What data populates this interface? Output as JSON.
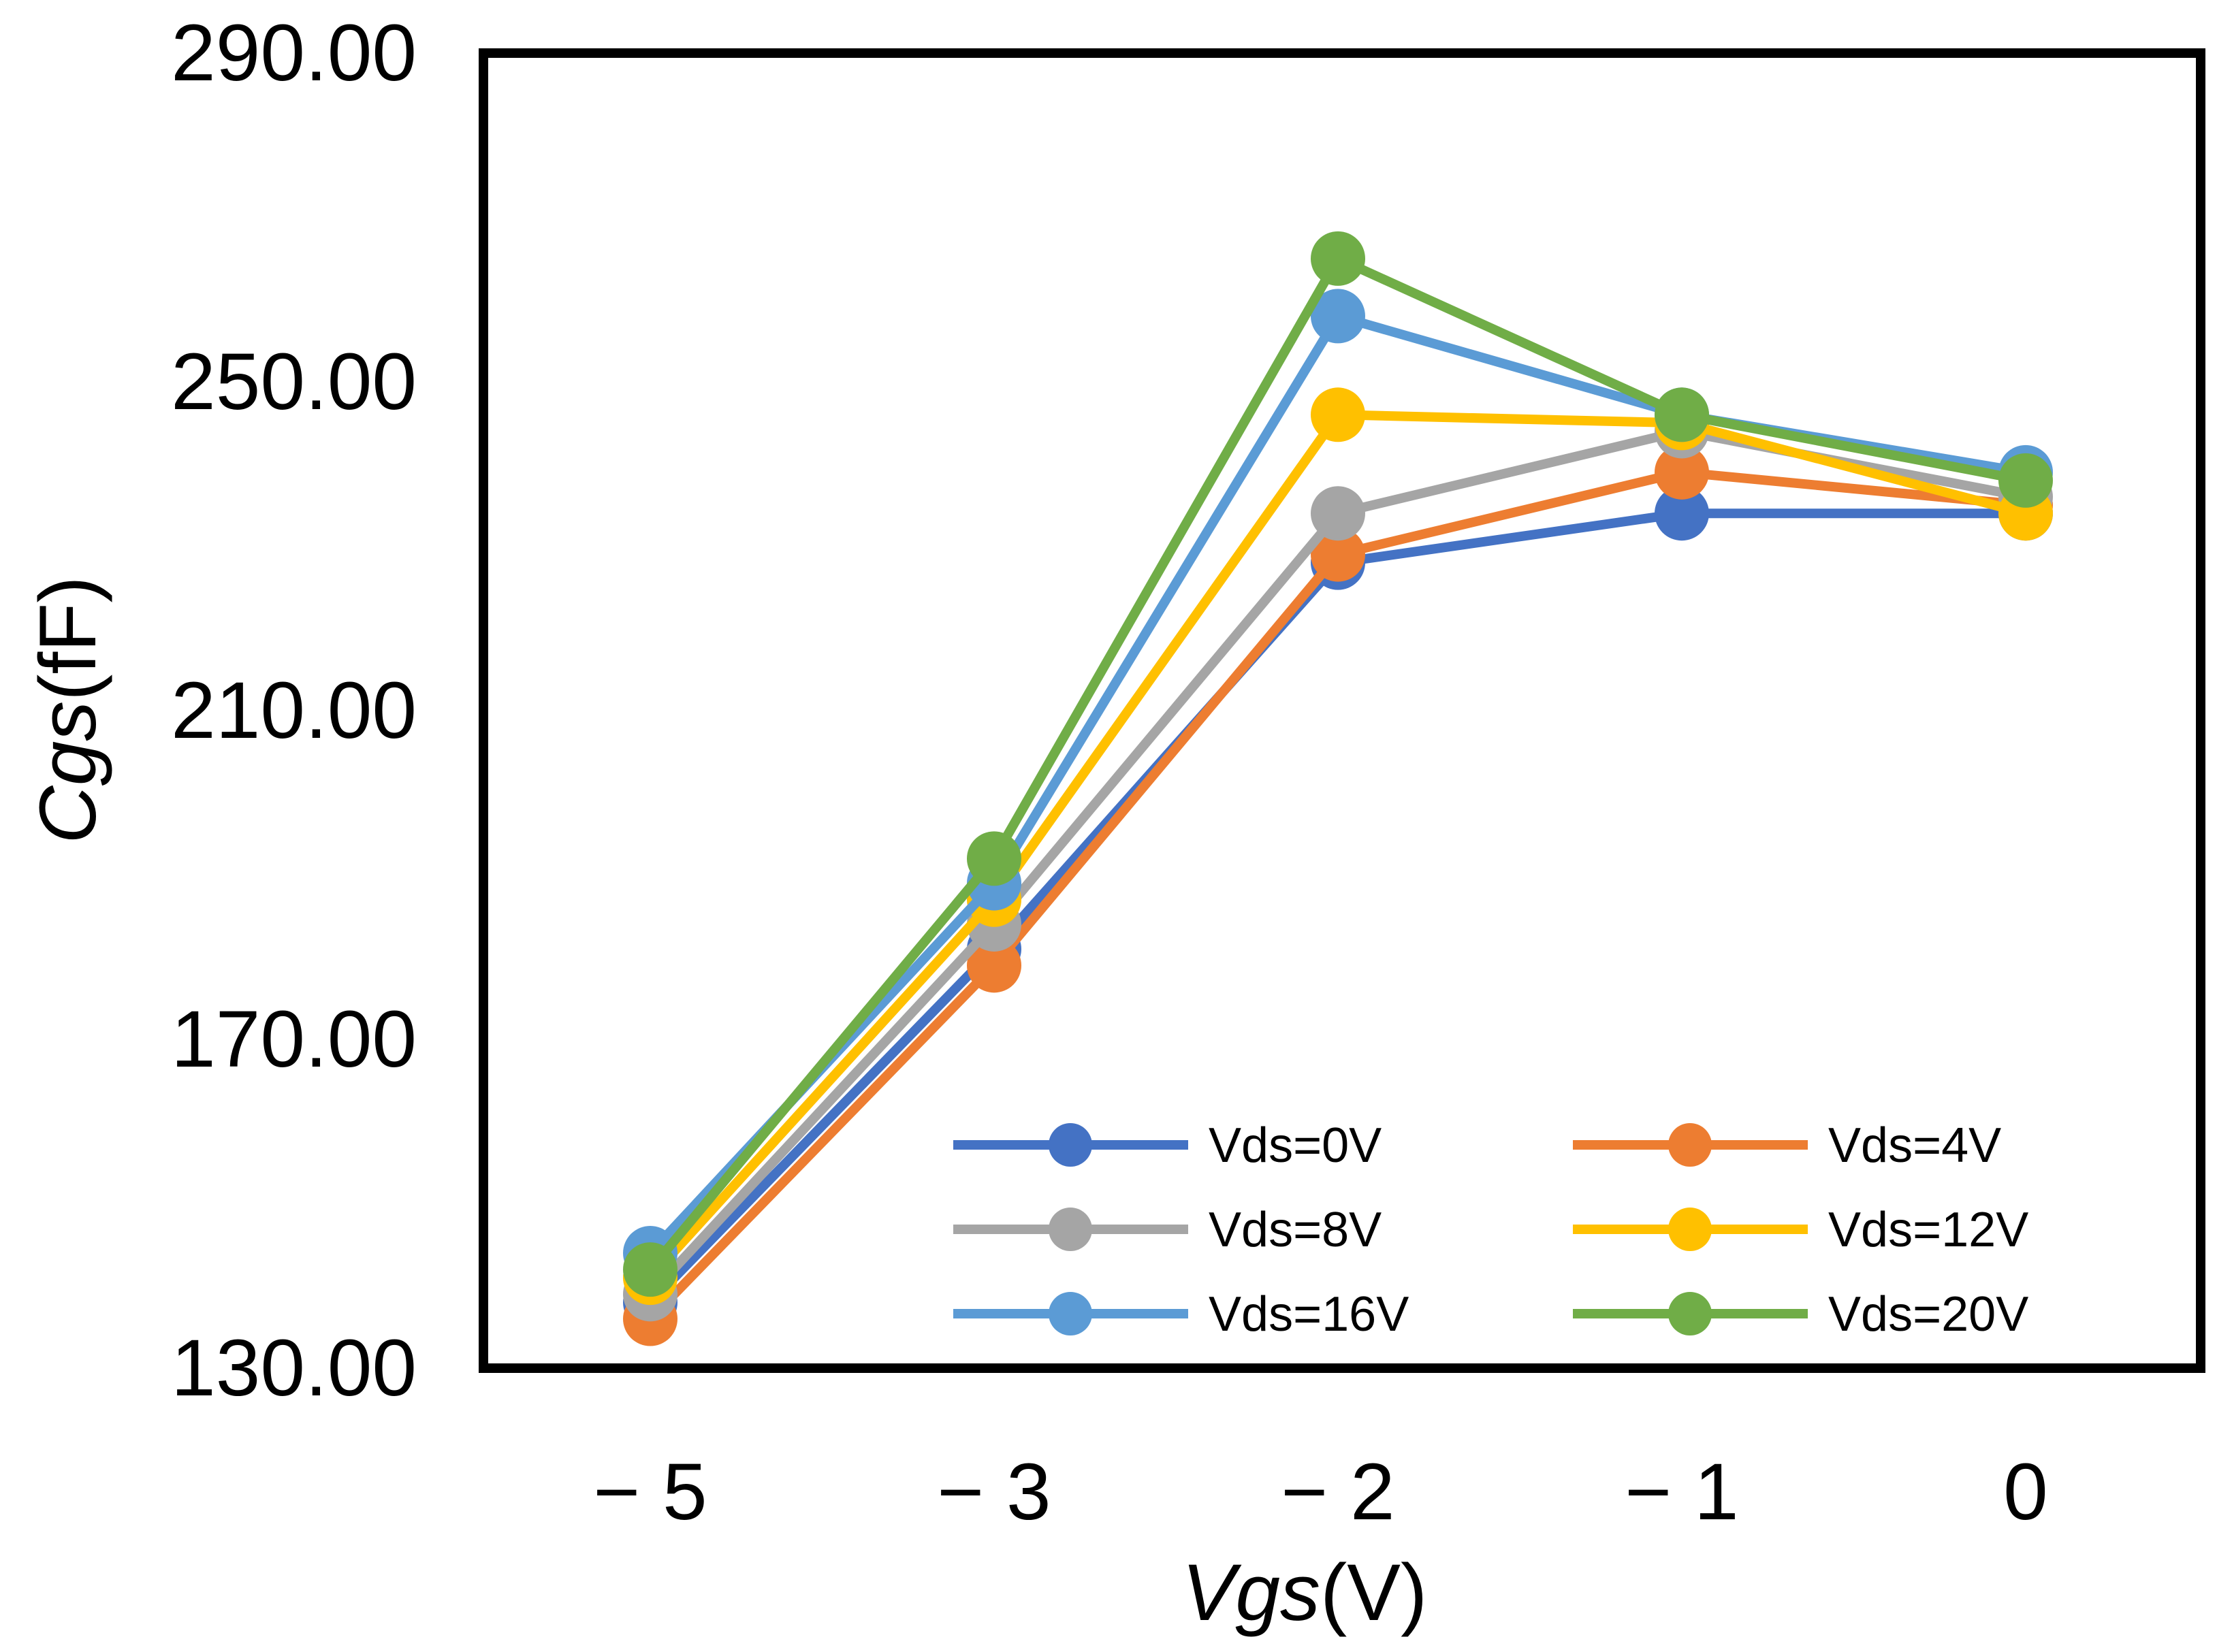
{
  "chart_data": {
    "type": "line",
    "title": "",
    "xlabel": {
      "italic": "Vgs",
      "unit": "(V)"
    },
    "ylabel": {
      "italic": "Cgs",
      "unit": "(fF)"
    },
    "categories": [
      "− 5",
      "− 3",
      "− 2",
      "− 1",
      "0"
    ],
    "x": [
      -5,
      -3,
      -2,
      -1,
      0
    ],
    "ylim": [
      130,
      290
    ],
    "yticks": [
      130,
      170,
      210,
      250,
      290
    ],
    "ytick_labels": [
      "130.00",
      "170.00",
      "210.00",
      "250.00",
      "290.00"
    ],
    "grid": false,
    "legend_position": "bottom-right",
    "series": [
      {
        "name": "Vds=0V",
        "color": "#4472C4",
        "values": [
          138,
          181,
          228,
          234,
          234
        ]
      },
      {
        "name": "Vds=4V",
        "color": "#ED7D31",
        "values": [
          136,
          179,
          229,
          239,
          235
        ]
      },
      {
        "name": "Vds=8V",
        "color": "#A5A5A5",
        "values": [
          139,
          184,
          234,
          244,
          236
        ]
      },
      {
        "name": "Vds=12V",
        "color": "#FFC000",
        "values": [
          141,
          187,
          246,
          245,
          234
        ]
      },
      {
        "name": "Vds=16V",
        "color": "#5B9BD5",
        "values": [
          144,
          189,
          258,
          246,
          239
        ]
      },
      {
        "name": "Vds=20V",
        "color": "#70AD47",
        "values": [
          142,
          192,
          265,
          246,
          238
        ]
      }
    ]
  }
}
